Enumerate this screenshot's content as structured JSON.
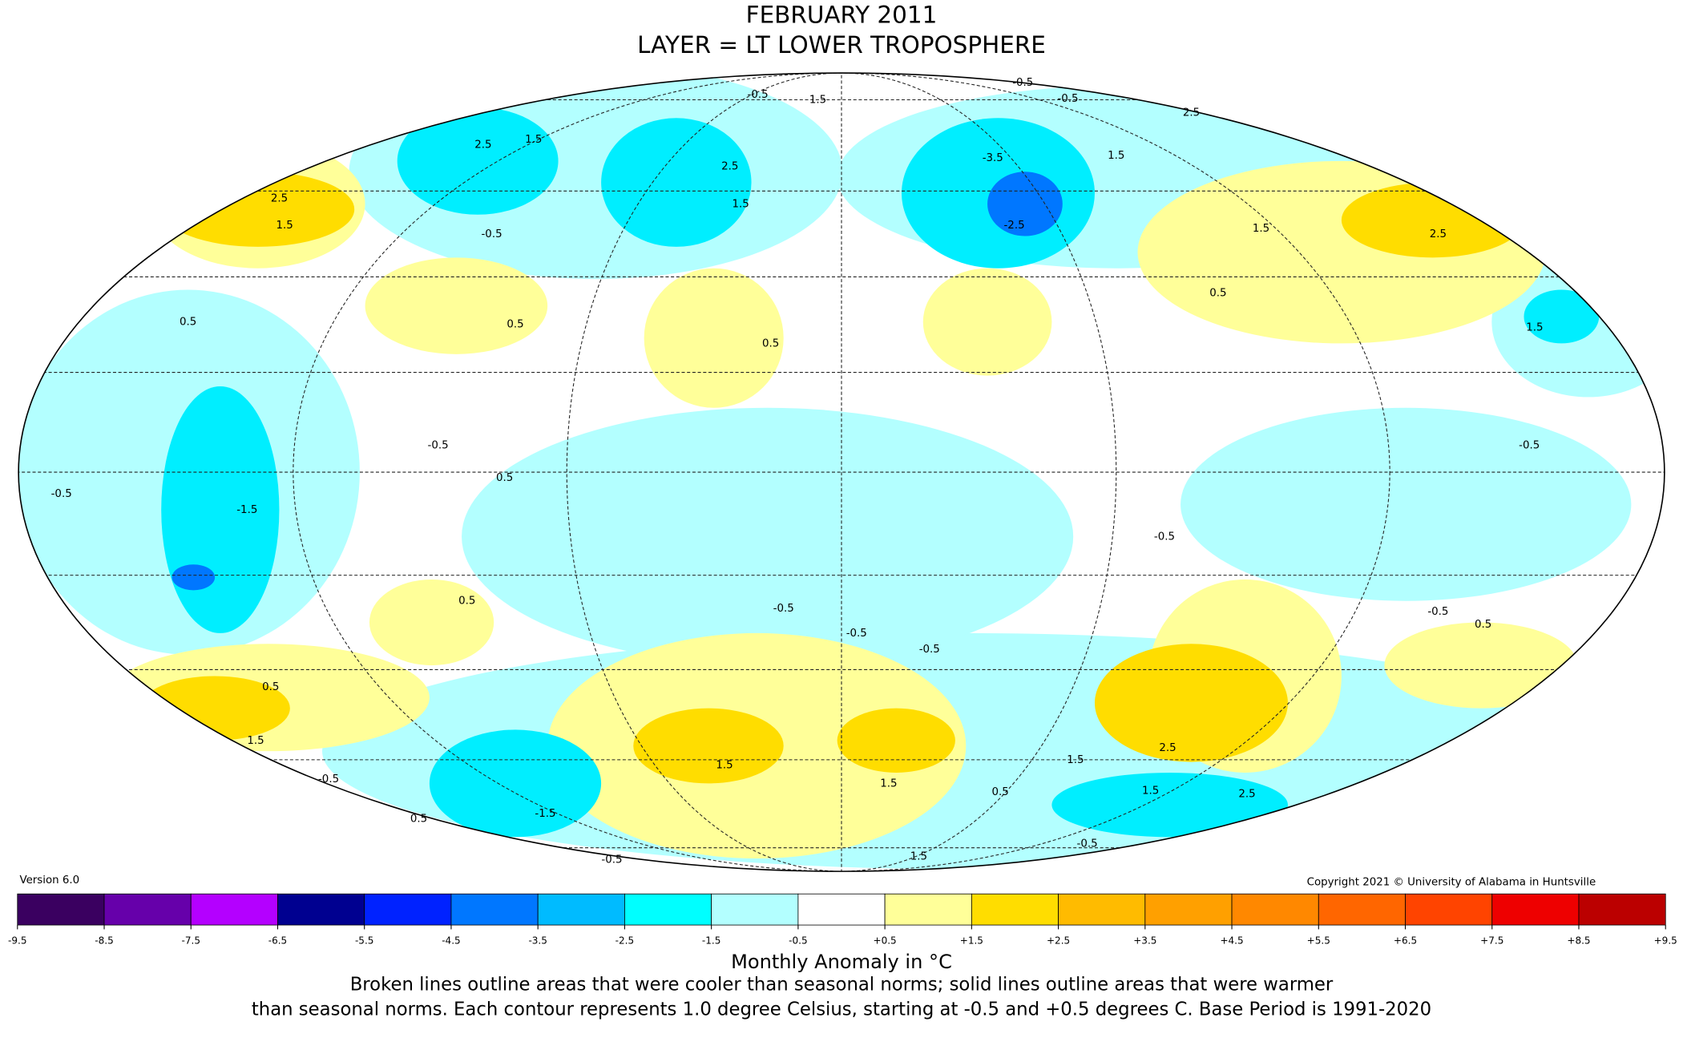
{
  "header": {
    "title": "FEBRUARY 2011",
    "subtitle": "LAYER = LT LOWER TROPOSPHERE"
  },
  "version": "Version 6.0",
  "copyright": "Copyright 2021 © University of Alabama in Huntsville",
  "map": {
    "contour_labels": [
      "-0.5",
      "1.5",
      "-0.5",
      "-0.5",
      "2.5",
      "-3.5",
      "-2.5",
      "1.5",
      "2.5",
      "1.5",
      "0.5",
      "1.5",
      "2.5",
      "1.5",
      "2.5",
      "1.5",
      "2.5",
      "1.5",
      "-0.5",
      "0.5",
      "0.5",
      "0.5",
      "-0.5",
      "0.5",
      "-0.5",
      "-1.5",
      "-0.5",
      "-0.5",
      "0.5",
      "-0.5",
      "-0.5",
      "-0.5",
      "-0.5",
      "0.5",
      "0.5",
      "1.5",
      "-0.5",
      "0.5",
      "-1.5",
      "1.5",
      "1.5",
      "0.5",
      "1.5",
      "2.5",
      "1.5",
      "2.5",
      "-0.5",
      "-0.5",
      "1.5"
    ]
  },
  "colorbar": {
    "lim": [
      -9.5,
      9.5
    ],
    "ticks": [
      -9.5,
      -8.5,
      -7.5,
      -6.5,
      -5.5,
      -4.5,
      -3.5,
      -2.5,
      -1.5,
      -0.5,
      {
        "value": 0.5,
        "label": "+0.5"
      },
      {
        "value": 1.5,
        "label": "+1.5"
      },
      {
        "value": 2.5,
        "label": "+2.5"
      },
      {
        "value": 3.5,
        "label": "+3.5"
      },
      {
        "value": 4.5,
        "label": "+4.5"
      },
      {
        "value": 5.5,
        "label": "+5.5"
      },
      {
        "value": 6.5,
        "label": "+6.5"
      },
      {
        "value": 7.5,
        "label": "+7.5"
      },
      {
        "value": 8.5,
        "label": "+8.5"
      },
      {
        "value": 9.5,
        "label": "+9.5"
      }
    ],
    "colors": [
      "#3a0060",
      "#6600aa",
      "#b400ff",
      "#000090",
      "#0022ff",
      "#0077ff",
      "#00bbff",
      "#00ffff",
      "#b3ffff",
      "#ffffff",
      "#ffff99",
      "#ffdd00",
      "#ffbb00",
      "#ffa000",
      "#ff8800",
      "#ff6600",
      "#ff4400",
      "#ee0000",
      "#bb0000"
    ],
    "label": "Monthly Anomaly in °C"
  },
  "caption": [
    "Broken lines outline areas that were cooler than seasonal norms; solid lines outline areas that were warmer",
    "than seasonal norms. Each contour represents 1.0 degree Celsius, starting at -0.5 and +0.5 degrees C. Base Period is 1991-2020"
  ]
}
